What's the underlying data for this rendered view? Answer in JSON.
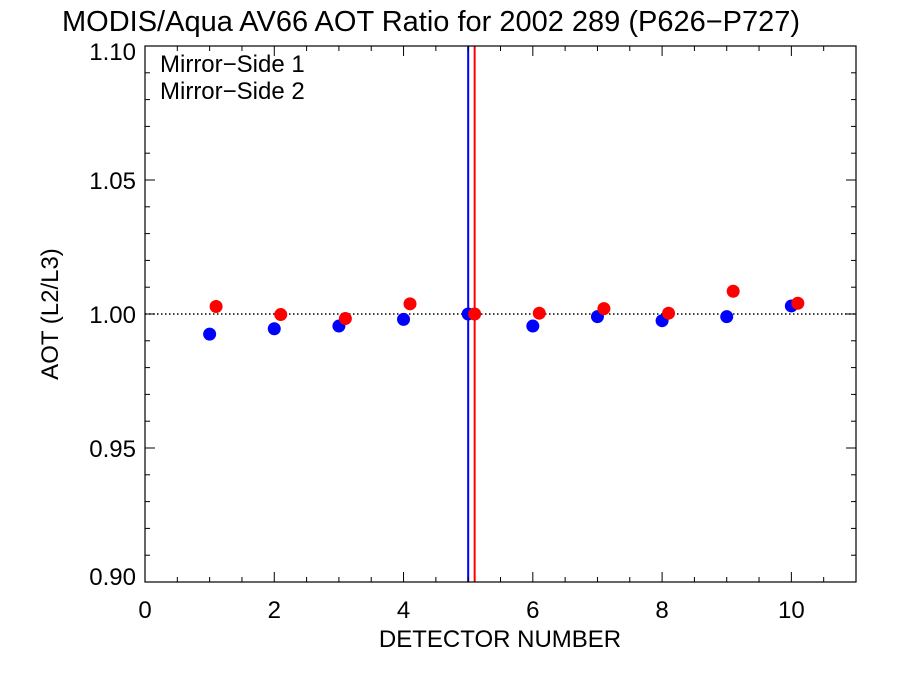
{
  "chart_data": {
    "type": "scatter",
    "title": "MODIS/Aqua AV66 AOT Ratio for 2002 289 (P626−P727)",
    "xlabel": "DETECTOR NUMBER",
    "ylabel": "AOT (L2/L3)",
    "xlim": [
      0,
      11
    ],
    "ylim": [
      0.9,
      1.1
    ],
    "x_ticks": [
      0,
      2,
      4,
      6,
      8,
      10
    ],
    "x_tick_labels": [
      "0",
      "2",
      "4",
      "6",
      "8",
      "10"
    ],
    "y_ticks": [
      0.9,
      0.95,
      1.0,
      1.05,
      1.1
    ],
    "y_tick_labels": [
      "0.90",
      "0.95",
      "1.00",
      "1.05",
      "1.10"
    ],
    "x_minor_step": 0.5,
    "y_minor_step": 0.01,
    "grid": false,
    "legend_position": "top-left",
    "reference_line_y": 1.0,
    "series": [
      {
        "name": "Mirror−Side 1",
        "color": "#0000ff",
        "x": [
          1,
          2,
          3,
          4,
          5,
          6,
          7,
          8,
          9,
          10
        ],
        "y": [
          0.9925,
          0.9945,
          0.9955,
          0.998,
          1.0,
          0.9955,
          0.999,
          0.9975,
          0.999,
          1.003
        ],
        "vline_x": 5.0
      },
      {
        "name": "Mirror−Side 2",
        "color": "#ff0000",
        "x": [
          1.1,
          2.1,
          3.1,
          4.1,
          5.1,
          6.1,
          7.1,
          8.1,
          9.1,
          10.1
        ],
        "y": [
          1.0028,
          0.9998,
          0.9983,
          1.0038,
          1.0,
          1.0003,
          1.002,
          1.0003,
          1.0085,
          1.004
        ],
        "vline_x": 5.1
      }
    ]
  }
}
